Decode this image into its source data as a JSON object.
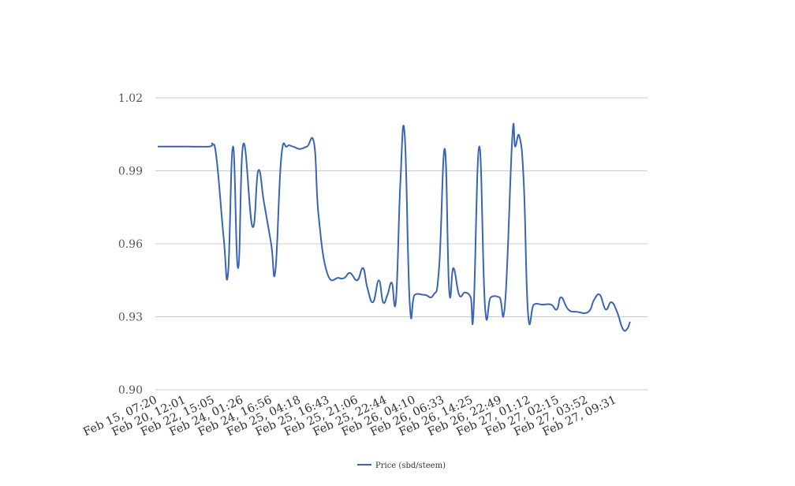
{
  "chart_data": {
    "type": "line",
    "title": "",
    "xlabel": "",
    "ylabel": "",
    "ylim": [
      0.9,
      1.02
    ],
    "yticks": [
      "0.90",
      "0.93",
      "0.96",
      "0.99",
      "1.02"
    ],
    "grid": true,
    "legend_position": "bottom-center",
    "colors": {
      "line": "#3a64b8",
      "grid": "#cccccc"
    },
    "x_tick_labels": [
      "Feb 15, 07:20",
      "Feb 20, 12:01",
      "Feb 22, 15:05",
      "Feb 24, 01:26",
      "Feb 24, 16:56",
      "Feb 25, 04:18",
      "Feb 25, 16:43",
      "Feb 25, 21:06",
      "Feb 25, 22:44",
      "Feb 26, 04:10",
      "Feb 26, 06:33",
      "Feb 26, 14:25",
      "Feb 26, 22:49",
      "Feb 27, 01:12",
      "Feb 27, 02:15",
      "Feb 27, 03:52",
      "Feb 27, 09:31"
    ],
    "x_range": [
      0,
      16.95
    ],
    "series": [
      {
        "name": "Price (sbd/steem)",
        "points": [
          [
            0.0,
            1.0
          ],
          [
            1.0,
            1.0
          ],
          [
            1.8,
            1.0
          ],
          [
            1.9,
            1.001
          ],
          [
            2.05,
            0.995
          ],
          [
            2.3,
            0.962
          ],
          [
            2.45,
            0.948
          ],
          [
            2.62,
            1.0
          ],
          [
            2.8,
            0.95
          ],
          [
            2.98,
            1.001
          ],
          [
            3.3,
            0.967
          ],
          [
            3.5,
            0.99
          ],
          [
            3.7,
            0.977
          ],
          [
            3.95,
            0.96
          ],
          [
            4.1,
            0.949
          ],
          [
            4.3,
            0.995
          ],
          [
            4.5,
            1.0
          ],
          [
            4.7,
            1.0
          ],
          [
            4.95,
            0.999
          ],
          [
            5.2,
            1.0
          ],
          [
            5.45,
            1.001
          ],
          [
            5.6,
            0.972
          ],
          [
            5.9,
            0.948
          ],
          [
            6.3,
            0.946
          ],
          [
            6.5,
            0.946
          ],
          [
            6.7,
            0.948
          ],
          [
            6.95,
            0.945
          ],
          [
            7.15,
            0.95
          ],
          [
            7.3,
            0.942
          ],
          [
            7.5,
            0.936
          ],
          [
            7.7,
            0.945
          ],
          [
            7.85,
            0.936
          ],
          [
            8.0,
            0.939
          ],
          [
            8.15,
            0.944
          ],
          [
            8.3,
            0.937
          ],
          [
            8.45,
            0.985
          ],
          [
            8.6,
            1.005
          ],
          [
            8.78,
            0.935
          ],
          [
            8.95,
            0.939
          ],
          [
            9.3,
            0.939
          ],
          [
            9.6,
            0.939
          ],
          [
            9.8,
            0.95
          ],
          [
            10.0,
            0.999
          ],
          [
            10.15,
            0.941
          ],
          [
            10.3,
            0.95
          ],
          [
            10.5,
            0.939
          ],
          [
            10.7,
            0.94
          ],
          [
            10.9,
            0.938
          ],
          [
            11.0,
            0.932
          ],
          [
            11.2,
            1.0
          ],
          [
            11.4,
            0.934
          ],
          [
            11.6,
            0.938
          ],
          [
            11.9,
            0.938
          ],
          [
            12.1,
            0.936
          ],
          [
            12.35,
            1.004
          ],
          [
            12.45,
            1.0
          ],
          [
            12.6,
            1.004
          ],
          [
            12.75,
            0.985
          ],
          [
            12.9,
            0.931
          ],
          [
            13.1,
            0.935
          ],
          [
            13.4,
            0.935
          ],
          [
            13.7,
            0.935
          ],
          [
            13.9,
            0.933
          ],
          [
            14.05,
            0.938
          ],
          [
            14.3,
            0.933
          ],
          [
            14.6,
            0.932
          ],
          [
            15.0,
            0.932
          ],
          [
            15.2,
            0.937
          ],
          [
            15.4,
            0.939
          ],
          [
            15.6,
            0.933
          ],
          [
            15.8,
            0.936
          ],
          [
            16.0,
            0.932
          ],
          [
            16.2,
            0.925
          ],
          [
            16.35,
            0.925
          ],
          [
            16.45,
            0.928
          ]
        ]
      }
    ]
  }
}
